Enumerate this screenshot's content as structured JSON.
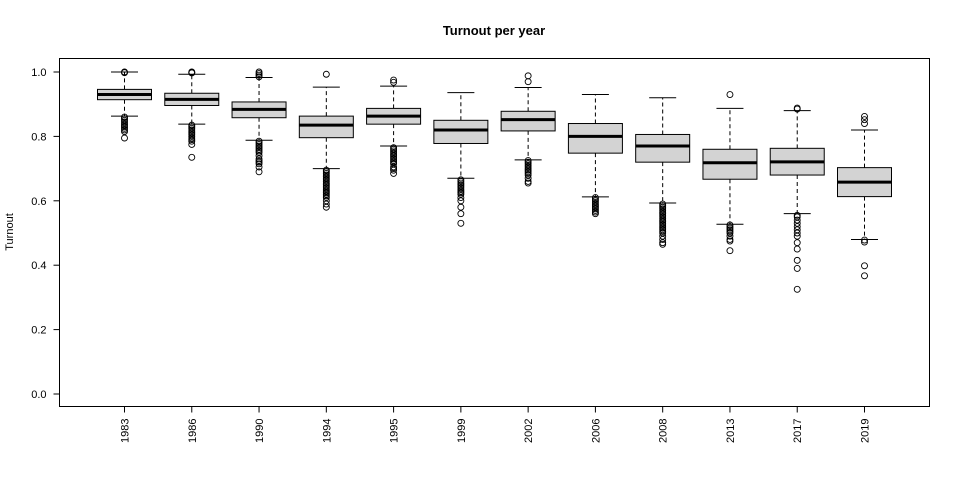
{
  "chart_data": {
    "type": "boxplot",
    "title": "Turnout per year",
    "xlabel": "",
    "ylabel": "Turnout",
    "ylim": [
      0.0,
      1.0
    ],
    "yticks": [
      "0.0",
      "0.2",
      "0.4",
      "0.6",
      "0.8",
      "1.0"
    ],
    "grid": false,
    "box_fill": "#d3d3d3",
    "categories": [
      "1983",
      "1986",
      "1990",
      "1994",
      "1995",
      "1999",
      "2002",
      "2006",
      "2008",
      "2013",
      "2017",
      "2019"
    ],
    "boxes": [
      {
        "year": "1983",
        "whisker_low": 0.863,
        "q1": 0.914,
        "median": 0.93,
        "q3": 0.946,
        "whisker_high": 1.0,
        "outliers": [
          1.0,
          0.998,
          0.86,
          0.855,
          0.85,
          0.845,
          0.84,
          0.835,
          0.83,
          0.825,
          0.82,
          0.815,
          0.795
        ]
      },
      {
        "year": "1986",
        "whisker_low": 0.838,
        "q1": 0.896,
        "median": 0.915,
        "q3": 0.934,
        "whisker_high": 0.993,
        "outliers": [
          1.0,
          0.998,
          0.997,
          0.835,
          0.83,
          0.825,
          0.82,
          0.815,
          0.81,
          0.805,
          0.8,
          0.795,
          0.79,
          0.785,
          0.775,
          0.735
        ]
      },
      {
        "year": "1990",
        "whisker_low": 0.788,
        "q1": 0.858,
        "median": 0.884,
        "q3": 0.907,
        "whisker_high": 0.983,
        "outliers": [
          1.0,
          0.995,
          0.99,
          0.985,
          0.785,
          0.78,
          0.775,
          0.77,
          0.765,
          0.76,
          0.755,
          0.75,
          0.74,
          0.73,
          0.725,
          0.72,
          0.715,
          0.705,
          0.69
        ]
      },
      {
        "year": "1994",
        "whisker_low": 0.7,
        "q1": 0.796,
        "median": 0.835,
        "q3": 0.863,
        "whisker_high": 0.953,
        "outliers": [
          0.993,
          0.695,
          0.69,
          0.685,
          0.68,
          0.675,
          0.67,
          0.665,
          0.66,
          0.655,
          0.65,
          0.645,
          0.64,
          0.635,
          0.63,
          0.625,
          0.62,
          0.615,
          0.61,
          0.6,
          0.59,
          0.58
        ]
      },
      {
        "year": "1995",
        "whisker_low": 0.77,
        "q1": 0.838,
        "median": 0.863,
        "q3": 0.887,
        "whisker_high": 0.956,
        "outliers": [
          0.975,
          0.968,
          0.765,
          0.76,
          0.755,
          0.75,
          0.745,
          0.74,
          0.735,
          0.73,
          0.725,
          0.72,
          0.715,
          0.705,
          0.7,
          0.695,
          0.685
        ]
      },
      {
        "year": "1999",
        "whisker_low": 0.67,
        "q1": 0.778,
        "median": 0.82,
        "q3": 0.85,
        "whisker_high": 0.936,
        "outliers": [
          0.665,
          0.66,
          0.655,
          0.65,
          0.645,
          0.64,
          0.635,
          0.63,
          0.625,
          0.62,
          0.61,
          0.6,
          0.58,
          0.56,
          0.53
        ]
      },
      {
        "year": "2002",
        "whisker_low": 0.727,
        "q1": 0.817,
        "median": 0.852,
        "q3": 0.878,
        "whisker_high": 0.952,
        "outliers": [
          0.988,
          0.97,
          0.725,
          0.72,
          0.715,
          0.71,
          0.705,
          0.7,
          0.695,
          0.69,
          0.685,
          0.68,
          0.67,
          0.66,
          0.655
        ]
      },
      {
        "year": "2006",
        "whisker_low": 0.612,
        "q1": 0.748,
        "median": 0.8,
        "q3": 0.84,
        "whisker_high": 0.93,
        "outliers": [
          0.61,
          0.605,
          0.6,
          0.595,
          0.59,
          0.585,
          0.58,
          0.575,
          0.57,
          0.565,
          0.56
        ]
      },
      {
        "year": "2008",
        "whisker_low": 0.593,
        "q1": 0.72,
        "median": 0.77,
        "q3": 0.806,
        "whisker_high": 0.92,
        "outliers": [
          0.59,
          0.585,
          0.58,
          0.575,
          0.57,
          0.565,
          0.56,
          0.555,
          0.55,
          0.545,
          0.54,
          0.535,
          0.53,
          0.525,
          0.52,
          0.515,
          0.51,
          0.505,
          0.5,
          0.49,
          0.48,
          0.47,
          0.465
        ]
      },
      {
        "year": "2013",
        "whisker_low": 0.527,
        "q1": 0.667,
        "median": 0.718,
        "q3": 0.76,
        "whisker_high": 0.887,
        "outliers": [
          0.93,
          0.525,
          0.52,
          0.515,
          0.51,
          0.505,
          0.5,
          0.49,
          0.48,
          0.475,
          0.445
        ]
      },
      {
        "year": "2017",
        "whisker_low": 0.56,
        "q1": 0.68,
        "median": 0.721,
        "q3": 0.763,
        "whisker_high": 0.88,
        "outliers": [
          0.888,
          0.885,
          0.555,
          0.55,
          0.54,
          0.53,
          0.52,
          0.51,
          0.5,
          0.49,
          0.47,
          0.45,
          0.415,
          0.39,
          0.325
        ]
      },
      {
        "year": "2019",
        "whisker_low": 0.48,
        "q1": 0.613,
        "median": 0.658,
        "q3": 0.703,
        "whisker_high": 0.82,
        "outliers": [
          0.862,
          0.852,
          0.84,
          0.478,
          0.472,
          0.398,
          0.367
        ]
      }
    ]
  }
}
